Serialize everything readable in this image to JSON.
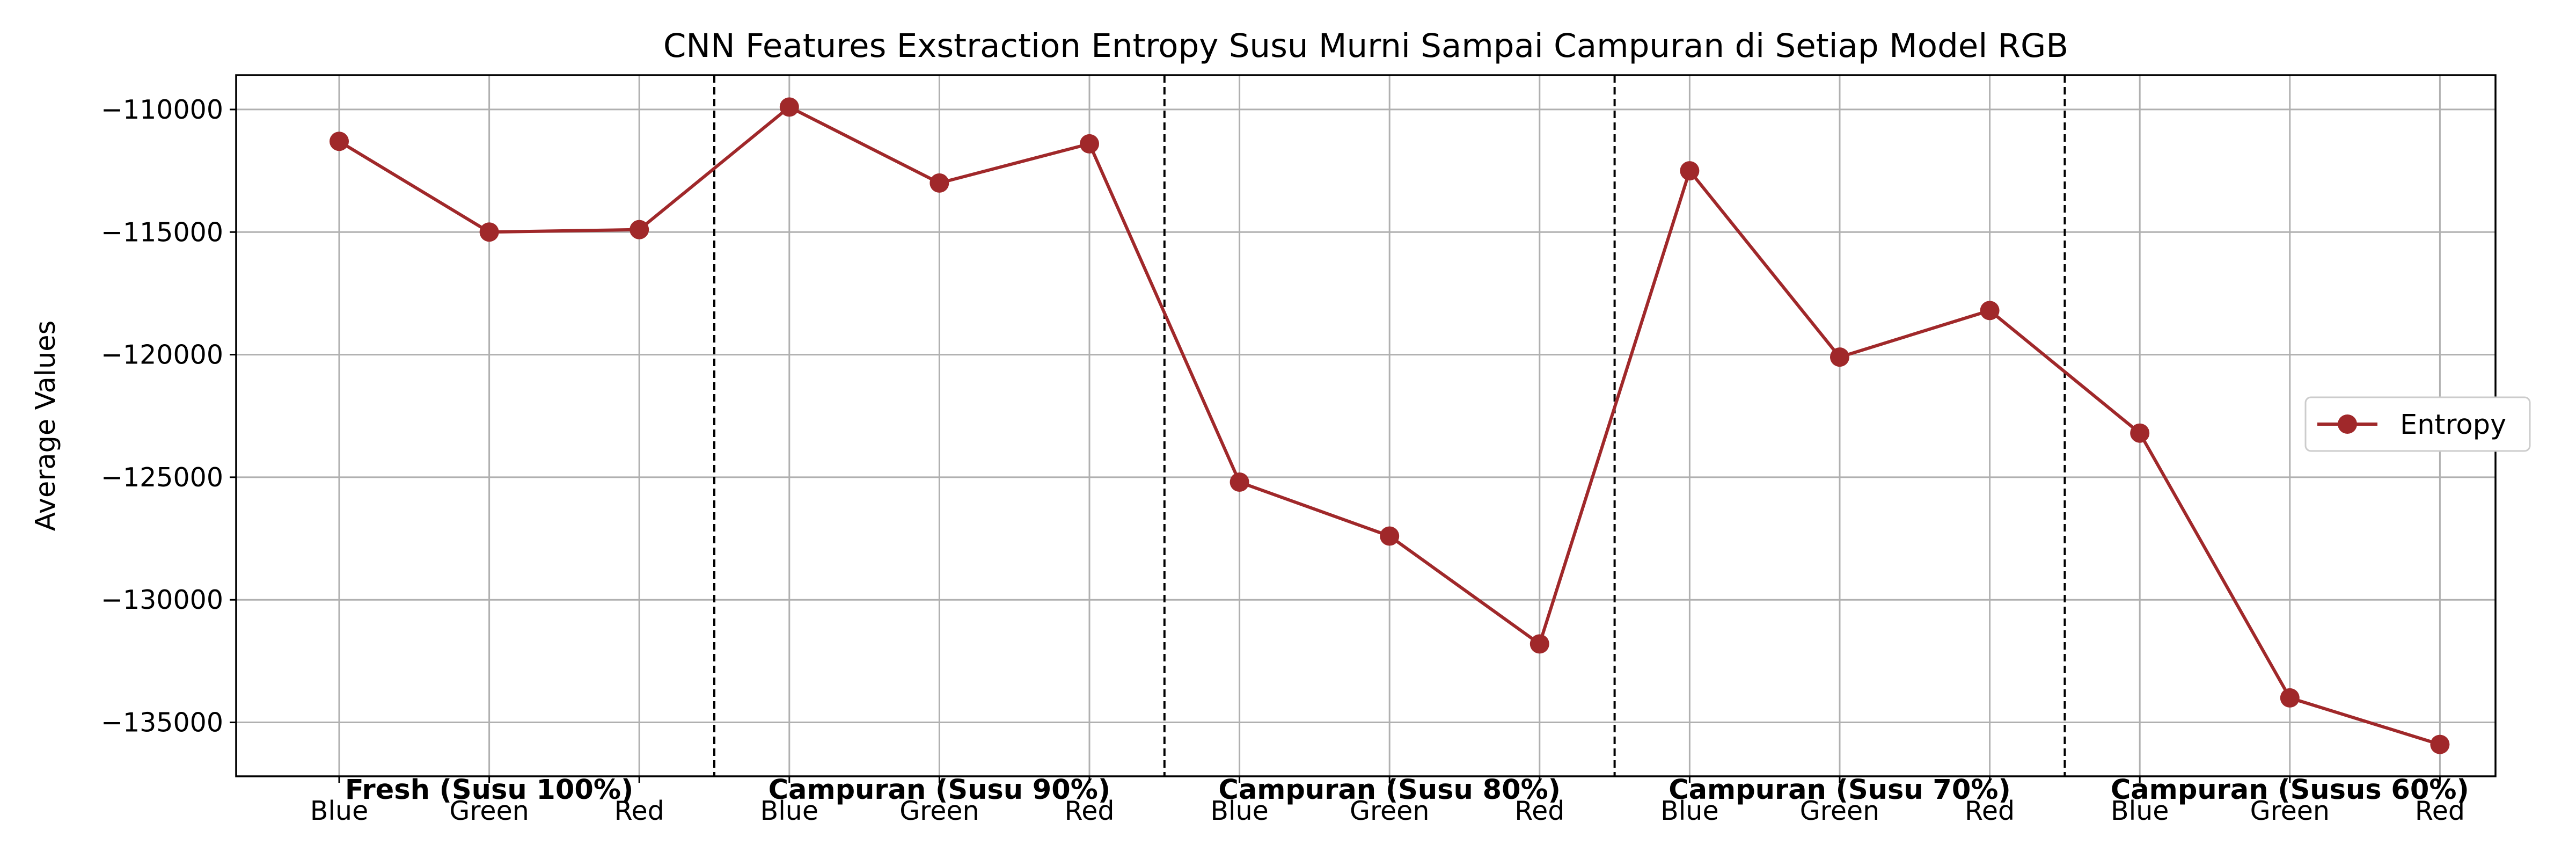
{
  "chart_data": {
    "type": "line",
    "title": "CNN Features Exstraction Entropy Susu Murni Sampai Campuran di Setiap Model RGB",
    "xlabel": "",
    "ylabel": "Average Values",
    "categories": [
      "Blue",
      "Green",
      "Red",
      "Blue",
      "Green",
      "Red",
      "Blue",
      "Green",
      "Red",
      "Blue",
      "Green",
      "Red",
      "Blue",
      "Green",
      "Red"
    ],
    "groups": [
      {
        "label": "Fresh (Susu 100%)",
        "start": 0,
        "end": 2
      },
      {
        "label": "Campuran (Susu 90%)",
        "start": 3,
        "end": 5
      },
      {
        "label": "Campuran (Susu 80%)",
        "start": 6,
        "end": 8
      },
      {
        "label": "Campuran (Susu 70%)",
        "start": 9,
        "end": 11
      },
      {
        "label": "Campuran (Susus 60%)",
        "start": 12,
        "end": 14
      }
    ],
    "series": [
      {
        "name": "Entropy",
        "color": "#a0282a",
        "values": [
          -111300,
          -115000,
          -114900,
          -109900,
          -113000,
          -111400,
          -125200,
          -127400,
          -131800,
          -112500,
          -120100,
          -118200,
          -123200,
          -134000,
          -135900
        ]
      }
    ],
    "ylim": [
      -137200,
      -108600
    ],
    "yticks": [
      -110000,
      -115000,
      -120000,
      -125000,
      -130000,
      -135000
    ],
    "ytick_labels": [
      "−110000",
      "−115000",
      "−120000",
      "−125000",
      "−130000",
      "−135000"
    ],
    "grid": true,
    "legend": "center-right"
  }
}
